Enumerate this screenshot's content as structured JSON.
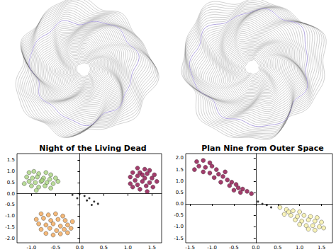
{
  "chart_data": [
    {
      "type": "scatter",
      "title": "Night of the Living Dead",
      "grid": false,
      "xlim": [
        -1.3,
        1.7
      ],
      "ylim": [
        -2.2,
        1.8
      ],
      "xticks": [
        {
          "value": -1,
          "label": "-1.0"
        },
        -0.5,
        {
          "value": 0,
          "label": "0.0"
        },
        0.5,
        {
          "value": 1,
          "label": "1.0"
        },
        1.5
      ],
      "yticks": [
        {
          "value": -2,
          "label": "-2.0"
        },
        -1.5,
        {
          "value": -1,
          "label": "-1.0"
        },
        -0.5,
        {
          "value": 0,
          "label": "0.0"
        },
        0.5,
        {
          "value": 1,
          "label": "1.0"
        },
        1.5
      ],
      "series": [
        {
          "color": "#a9d47f",
          "marker": "circle",
          "values": [
            [
              -1.05,
              0.95
            ],
            [
              -0.95,
              1.0
            ],
            [
              -0.85,
              0.9
            ],
            [
              -0.7,
              0.95
            ],
            [
              -0.6,
              0.85
            ],
            [
              -1.1,
              0.75
            ],
            [
              -0.98,
              0.7
            ],
            [
              -0.88,
              0.75
            ],
            [
              -0.75,
              0.7
            ],
            [
              -0.62,
              0.65
            ],
            [
              -0.5,
              0.7
            ],
            [
              -1.05,
              0.55
            ],
            [
              -0.92,
              0.5
            ],
            [
              -0.8,
              0.55
            ],
            [
              -0.68,
              0.5
            ],
            [
              -0.55,
              0.45
            ],
            [
              -1.0,
              0.35
            ],
            [
              -0.85,
              0.3
            ],
            [
              -0.72,
              0.35
            ],
            [
              -0.6,
              0.25
            ],
            [
              -0.9,
              0.15
            ],
            [
              -0.78,
              0.6
            ],
            [
              -0.45,
              0.55
            ],
            [
              -1.15,
              0.45
            ]
          ]
        },
        {
          "color": "#f3a857",
          "marker": "circle",
          "values": [
            [
              -0.8,
              -0.9
            ],
            [
              -0.65,
              -0.95
            ],
            [
              -0.5,
              -0.9
            ],
            [
              -0.35,
              -1.0
            ],
            [
              -0.9,
              -1.15
            ],
            [
              -0.75,
              -1.1
            ],
            [
              -0.6,
              -1.2
            ],
            [
              -0.45,
              -1.15
            ],
            [
              -0.3,
              -1.2
            ],
            [
              -0.15,
              -1.25
            ],
            [
              -0.85,
              -1.35
            ],
            [
              -0.7,
              -1.4
            ],
            [
              -0.55,
              -1.35
            ],
            [
              -0.4,
              -1.45
            ],
            [
              -0.25,
              -1.4
            ],
            [
              -0.8,
              -1.6
            ],
            [
              -0.62,
              -1.55
            ],
            [
              -0.48,
              -1.65
            ],
            [
              -0.32,
              -1.6
            ],
            [
              -0.18,
              -1.55
            ],
            [
              -0.7,
              -1.78
            ],
            [
              -0.55,
              -1.85
            ],
            [
              -0.4,
              -1.8
            ],
            [
              -0.25,
              -1.75
            ]
          ]
        },
        {
          "color": "#000000",
          "marker": "dot",
          "values": [
            [
              -0.15,
              -0.05
            ],
            [
              0.0,
              0.0
            ],
            [
              0.1,
              -0.1
            ],
            [
              0.2,
              -0.2
            ],
            [
              0.3,
              -0.35
            ],
            [
              0.38,
              -0.45
            ],
            [
              0.15,
              -0.3
            ],
            [
              0.25,
              -0.5
            ],
            [
              -0.05,
              -0.2
            ]
          ]
        },
        {
          "color": "#8c0d47",
          "marker": "circle",
          "values": [
            [
              1.2,
              1.15
            ],
            [
              1.35,
              1.1
            ],
            [
              1.45,
              1.05
            ],
            [
              1.1,
              0.95
            ],
            [
              1.25,
              0.95
            ],
            [
              1.4,
              0.9
            ],
            [
              1.55,
              0.85
            ],
            [
              1.05,
              0.75
            ],
            [
              1.2,
              0.8
            ],
            [
              1.35,
              0.7
            ],
            [
              1.5,
              0.7
            ],
            [
              1.15,
              0.6
            ],
            [
              1.3,
              0.55
            ],
            [
              1.45,
              0.5
            ],
            [
              1.6,
              0.55
            ],
            [
              1.05,
              0.45
            ],
            [
              1.2,
              0.4
            ],
            [
              1.38,
              0.35
            ],
            [
              1.52,
              0.3
            ],
            [
              1.25,
              0.2
            ],
            [
              1.4,
              0.1
            ],
            [
              1.3,
              0.85
            ],
            [
              1.1,
              0.3
            ]
          ]
        }
      ]
    },
    {
      "type": "scatter",
      "title": "Plan Nine from Outer Space",
      "grid": false,
      "xlim": [
        -1.6,
        1.75
      ],
      "ylim": [
        -1.7,
        2.2
      ],
      "xticks": [
        -1.5,
        {
          "value": -1,
          "label": "-1.0"
        },
        -0.5,
        {
          "value": 0,
          "label": "0.0"
        },
        0.5,
        {
          "value": 1,
          "label": "1.0"
        },
        1.5
      ],
      "yticks": [
        -1.5,
        {
          "value": -1,
          "label": "-1.0"
        },
        -0.5,
        {
          "value": 0,
          "label": "0.0"
        },
        0.5,
        {
          "value": 1,
          "label": "1.0"
        },
        1.5,
        {
          "value": 2,
          "label": "2.0"
        }
      ],
      "series": [
        {
          "color": "#8c0d47",
          "marker": "circle",
          "values": [
            [
              -1.35,
              1.85
            ],
            [
              -1.2,
              1.9
            ],
            [
              -1.05,
              1.8
            ],
            [
              -1.3,
              1.65
            ],
            [
              -1.15,
              1.6
            ],
            [
              -1.0,
              1.65
            ],
            [
              -0.9,
              1.5
            ],
            [
              -1.2,
              1.4
            ],
            [
              -1.05,
              1.35
            ],
            [
              -0.85,
              1.3
            ],
            [
              -0.95,
              1.15
            ],
            [
              -0.75,
              1.2
            ],
            [
              -0.65,
              1.05
            ],
            [
              -0.8,
              0.95
            ],
            [
              -0.55,
              0.95
            ],
            [
              -0.6,
              0.8
            ],
            [
              -0.45,
              0.85
            ],
            [
              -0.4,
              0.7
            ],
            [
              -0.3,
              0.65
            ],
            [
              -0.5,
              0.6
            ],
            [
              -0.2,
              0.55
            ],
            [
              -0.1,
              0.45
            ],
            [
              -0.7,
              1.4
            ],
            [
              -1.4,
              1.5
            ],
            [
              -0.35,
              0.5
            ]
          ]
        },
        {
          "color": "#000000",
          "marker": "dot",
          "values": [
            [
              0.05,
              0.1
            ],
            [
              0.15,
              0.0
            ],
            [
              0.25,
              -0.05
            ],
            [
              0.35,
              -0.15
            ]
          ]
        },
        {
          "color": "#f6f0a6",
          "marker": "circle",
          "values": [
            [
              0.55,
              -0.15
            ],
            [
              0.7,
              -0.25
            ],
            [
              0.85,
              -0.3
            ],
            [
              1.0,
              -0.35
            ],
            [
              0.65,
              -0.45
            ],
            [
              0.8,
              -0.5
            ],
            [
              0.95,
              -0.55
            ],
            [
              1.1,
              -0.5
            ],
            [
              1.25,
              -0.55
            ],
            [
              0.9,
              -0.7
            ],
            [
              1.05,
              -0.75
            ],
            [
              1.2,
              -0.7
            ],
            [
              1.35,
              -0.75
            ],
            [
              1.5,
              -0.8
            ],
            [
              1.0,
              -0.9
            ],
            [
              1.15,
              -0.95
            ],
            [
              1.3,
              -0.95
            ],
            [
              1.45,
              -1.0
            ],
            [
              1.2,
              -1.1
            ],
            [
              1.35,
              -1.15
            ],
            [
              1.55,
              -1.05
            ],
            [
              0.75,
              -0.35
            ],
            [
              1.4,
              -0.6
            ]
          ]
        }
      ]
    }
  ]
}
